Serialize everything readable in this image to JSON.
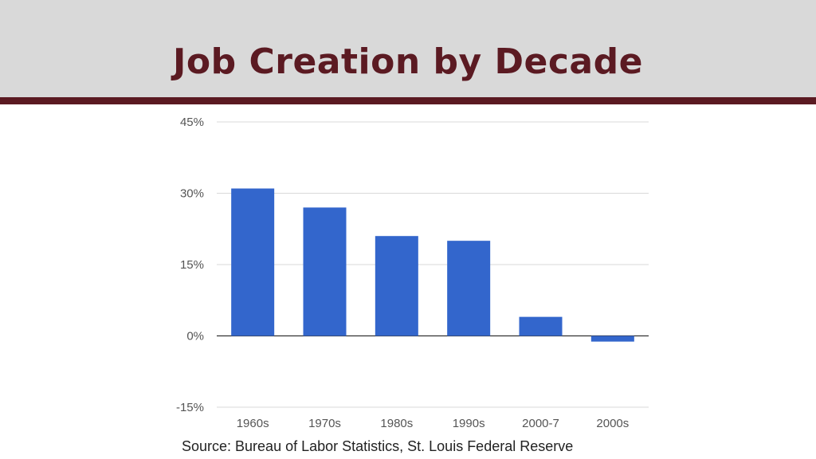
{
  "slide": {
    "title": "Job Creation by Decade",
    "source": "Source:  Bureau of Labor Statistics, St. Louis Federal Reserve"
  },
  "colors": {
    "header_bg": "#d9d9d9",
    "accent": "#5b1a22",
    "bar": "#3366cc",
    "grid": "#d9d9d9",
    "axis": "#333333"
  },
  "chart_data": {
    "type": "bar",
    "title": "",
    "xlabel": "",
    "ylabel": "",
    "categories": [
      "1960s",
      "1970s",
      "1980s",
      "1990s",
      "2000-7",
      "2000s"
    ],
    "values": [
      31,
      27,
      21,
      20,
      4,
      -1.2
    ],
    "ylim": [
      -15,
      45
    ],
    "yticks": [
      45,
      30,
      15,
      0,
      -15
    ],
    "ytick_labels": [
      "45%",
      "30%",
      "15%",
      "0%",
      "-15%"
    ],
    "grid": true,
    "legend": "none"
  }
}
